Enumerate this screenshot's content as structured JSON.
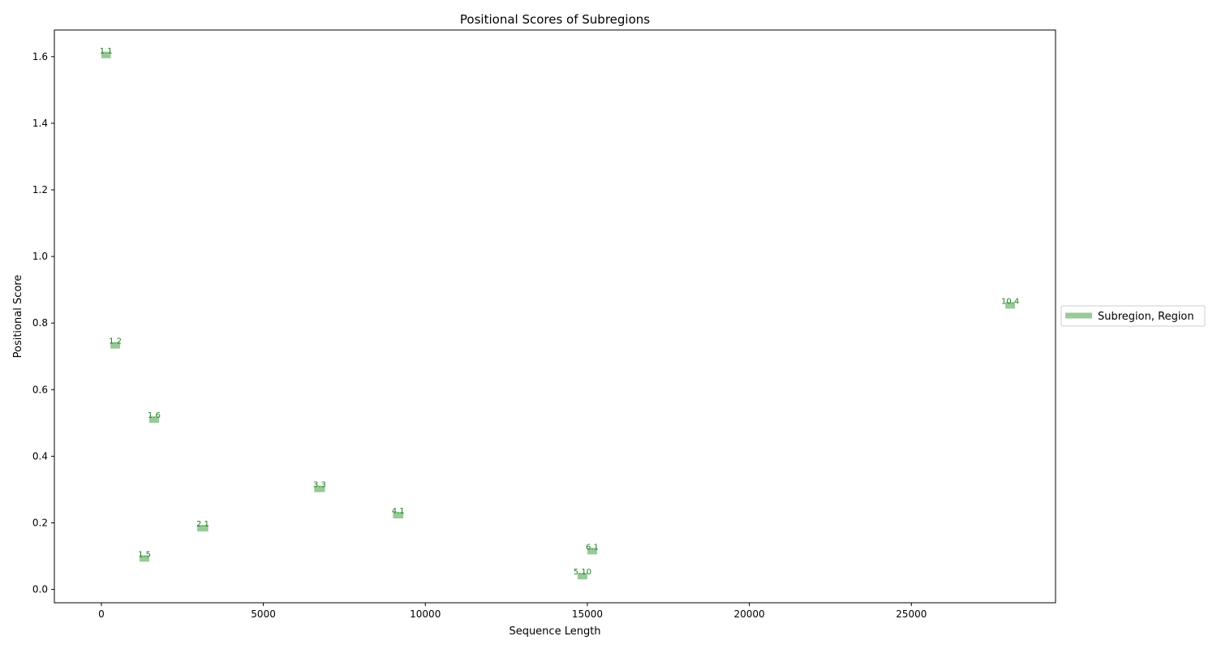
{
  "chart_data": {
    "type": "scatter",
    "title": "Positional Scores of Subregions",
    "xlabel": "Sequence Length",
    "ylabel": "Positional Score",
    "xlim": [
      -1450,
      29450
    ],
    "ylim": [
      -0.04,
      1.68
    ],
    "xticks": [
      0,
      5000,
      10000,
      15000,
      20000,
      25000
    ],
    "yticks": [
      0.0,
      0.2,
      0.4,
      0.6,
      0.8,
      1.0,
      1.2,
      1.4,
      1.6
    ],
    "ytick_labels": [
      "0.0",
      "0.2",
      "0.4",
      "0.6",
      "0.8",
      "1.0",
      "1.2",
      "1.4",
      "1.6"
    ],
    "grid": false,
    "legend": {
      "placement": "right, outside plot",
      "entries": [
        "Subregion, Region"
      ]
    },
    "colors": {
      "segment": "#98c998",
      "label": "#1a7f1a"
    },
    "series": [
      {
        "name": "Subregion, Region",
        "points": [
          {
            "label": "1.1",
            "x_start": 0,
            "x_end": 290,
            "y": 1.605
          },
          {
            "label": "1.2",
            "x_start": 280,
            "x_end": 580,
            "y": 0.733
          },
          {
            "label": "1.5",
            "x_start": 1180,
            "x_end": 1480,
            "y": 0.093
          },
          {
            "label": "1.6",
            "x_start": 1480,
            "x_end": 1780,
            "y": 0.51
          },
          {
            "label": "2.1",
            "x_start": 2960,
            "x_end": 3300,
            "y": 0.184
          },
          {
            "label": "3.3",
            "x_start": 6570,
            "x_end": 6900,
            "y": 0.302
          },
          {
            "label": "4.1",
            "x_start": 9000,
            "x_end": 9320,
            "y": 0.223
          },
          {
            "label": "5.10",
            "x_start": 14700,
            "x_end": 15000,
            "y": 0.04
          },
          {
            "label": "6.1",
            "x_start": 15000,
            "x_end": 15300,
            "y": 0.115
          },
          {
            "label": "10.4",
            "x_start": 27900,
            "x_end": 28200,
            "y": 0.853
          }
        ]
      }
    ]
  }
}
